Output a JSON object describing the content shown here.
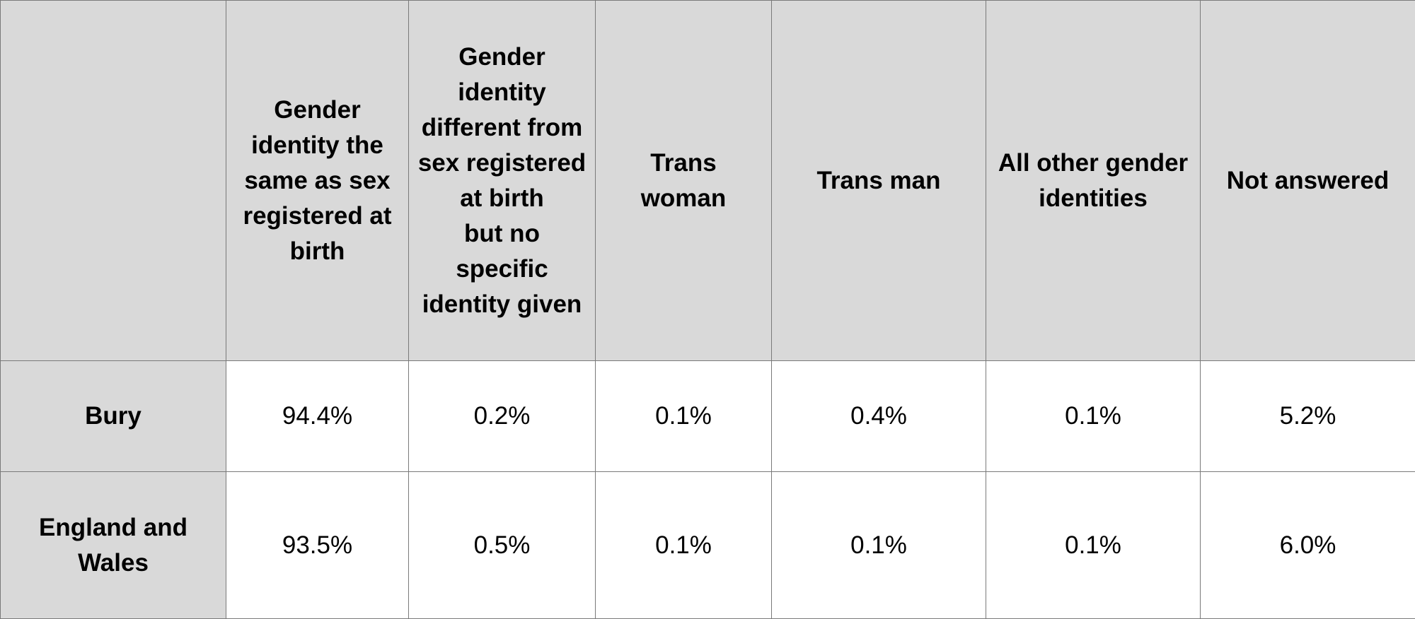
{
  "table": {
    "corner": "",
    "columns": [
      "Gender\nidentity the\nsame as sex\nregistered at\nbirth",
      "Gender\nidentity\ndifferent from\nsex registered\nat birth\nbut no\nspecific\nidentity given",
      "Trans\nwoman",
      "Trans man",
      "All other gender\nidentities",
      "Not answered"
    ],
    "rows": [
      {
        "label": "Bury",
        "values": [
          "94.4%",
          "0.2%",
          "0.1%",
          "0.4%",
          "0.1%",
          "5.2%"
        ]
      },
      {
        "label": "England and\nWales",
        "values": [
          "93.5%",
          "0.5%",
          "0.1%",
          "0.1%",
          "0.1%",
          "6.0%"
        ]
      }
    ]
  }
}
